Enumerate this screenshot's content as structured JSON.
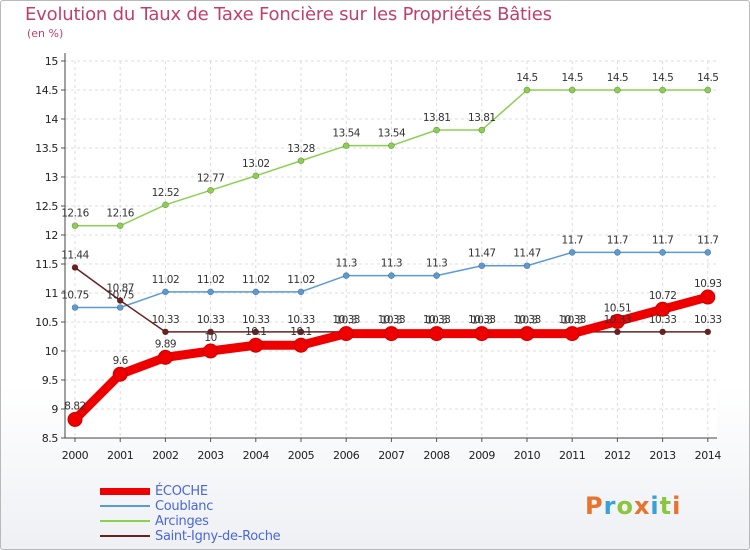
{
  "header": {
    "title": "Evolution du Taux de Taxe Foncière sur les Propriétés Bâties",
    "unit": "(en %)"
  },
  "logo": {
    "letters": [
      {
        "char": "P",
        "color": "#e8732c"
      },
      {
        "char": "r",
        "color": "#3aa0d8"
      },
      {
        "char": "o",
        "color": "#8cc63f"
      },
      {
        "char": "x",
        "color": "#e8732c"
      },
      {
        "char": "i",
        "color": "#3aa0d8"
      },
      {
        "char": "t",
        "color": "#8cc63f"
      },
      {
        "char": "i",
        "color": "#e8732c"
      }
    ]
  },
  "chart_data": {
    "type": "line",
    "title": "Evolution du Taux de Taxe Foncière sur les Propriétés Bâties",
    "ylabel": "(en %)",
    "xlabel": "",
    "ylim": [
      8.5,
      15
    ],
    "yticks": [
      "8.5",
      "9",
      "9.5",
      "10",
      "10.5",
      "11",
      "11.5",
      "12",
      "12.5",
      "13",
      "13.5",
      "14",
      "14.5",
      "15"
    ],
    "grid": true,
    "legend_position": "bottom-left",
    "categories": [
      "2000",
      "2001",
      "2002",
      "2003",
      "2004",
      "2005",
      "2006",
      "2007",
      "2008",
      "2009",
      "2010",
      "2011",
      "2012",
      "2013",
      "2014"
    ],
    "series": [
      {
        "name": "Arcinges",
        "color": "#8cd050",
        "values": [
          12.16,
          12.16,
          12.52,
          12.77,
          13.02,
          13.28,
          13.54,
          13.54,
          13.81,
          13.81,
          14.5,
          14.5,
          14.5,
          14.5,
          14.5
        ],
        "labels": [
          "12.16",
          "12.16",
          "12.52",
          "12.77",
          "13.02",
          "13.28",
          "13.54",
          "13.54",
          "13.81",
          "13.81",
          "14.5",
          "14.5",
          "14.5",
          "14.5",
          "14.5"
        ]
      },
      {
        "name": "Coublanc",
        "color": "#5b9bd5",
        "values": [
          10.75,
          10.75,
          11.02,
          11.02,
          11.02,
          11.02,
          11.3,
          11.3,
          11.3,
          11.47,
          11.47,
          11.7,
          11.7,
          11.7,
          11.7
        ],
        "labels": [
          "10.75",
          "10.75",
          "11.02",
          "11.02",
          "11.02",
          "11.02",
          "11.3",
          "11.3",
          "11.3",
          "11.47",
          "11.47",
          "11.7",
          "11.7",
          "11.7",
          "11.7"
        ]
      },
      {
        "name": "Saint-Igny-de-Roche",
        "color": "#6b2020",
        "values": [
          11.44,
          10.87,
          10.33,
          10.33,
          10.33,
          10.33,
          10.33,
          10.33,
          10.33,
          10.33,
          10.33,
          10.33,
          10.33,
          10.33,
          10.33
        ],
        "labels": [
          "11.44",
          "10.87",
          "10.33",
          "10.33",
          "10.33",
          "10.33",
          "10.33",
          "10.33",
          "10.33",
          "10.33",
          "10.33",
          "10.33",
          "10.33",
          "10.33",
          "10.33"
        ]
      },
      {
        "name": "ÉCOCHE",
        "color": "#ee0000",
        "values": [
          8.82,
          9.6,
          9.89,
          10,
          10.1,
          10.1,
          10.3,
          10.3,
          10.3,
          10.3,
          10.3,
          10.3,
          10.51,
          10.72,
          10.93
        ],
        "labels": [
          "8.82",
          "9.6",
          "9.89",
          "10",
          "10.1",
          "10.1",
          "10.3",
          "10.3",
          "10.3",
          "10.3",
          "10.3",
          "10.3",
          "10.51",
          "10.72",
          "10.93"
        ]
      }
    ],
    "legend": [
      {
        "name": "ÉCOCHE",
        "color": "#ee0000",
        "width": 7
      },
      {
        "name": "Coublanc",
        "color": "#5b9bd5",
        "width": 2
      },
      {
        "name": "Arcinges",
        "color": "#8cd050",
        "width": 2
      },
      {
        "name": "Saint-Igny-de-Roche",
        "color": "#6b2020",
        "width": 2
      }
    ]
  }
}
